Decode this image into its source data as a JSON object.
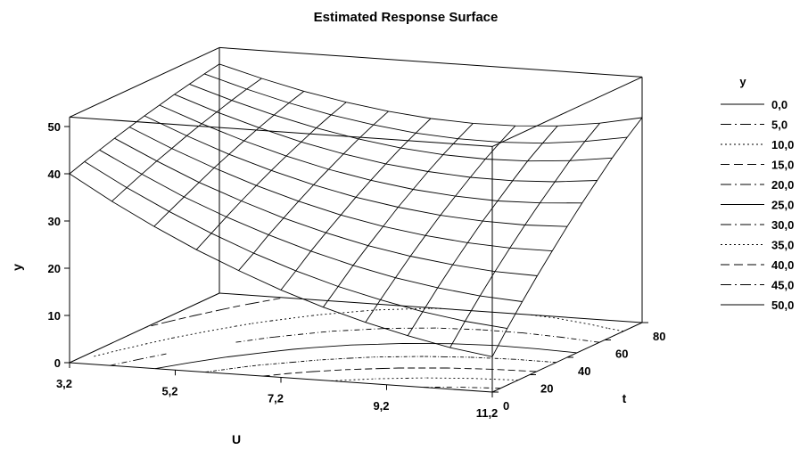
{
  "chart_data": {
    "type": "surface",
    "title": "Estimated Response Surface",
    "xlabel": "U",
    "ylabel": "t",
    "zlabel": "y",
    "x_ticks": [
      "3,2",
      "5,2",
      "7,2",
      "9,2",
      "11,2"
    ],
    "y_ticks": [
      "0",
      "20",
      "40",
      "60",
      "80"
    ],
    "z_ticks": [
      "0",
      "10",
      "20",
      "30",
      "40",
      "50"
    ],
    "xlim": [
      3.2,
      11.2
    ],
    "ylim": [
      0,
      80
    ],
    "zlim": [
      0,
      50
    ],
    "surface_grid": {
      "x": [
        3.2,
        4.0,
        4.8,
        5.6,
        6.4,
        7.2,
        8.0,
        8.8,
        9.6,
        10.4,
        11.2
      ],
      "y": [
        0,
        8,
        16,
        24,
        32,
        40,
        48,
        56,
        64,
        72,
        80
      ],
      "z_rows": [
        [
          40.0,
          34.8,
          30.1,
          25.8,
          22.0,
          18.5,
          15.5,
          12.9,
          10.7,
          8.8,
          7.5
        ],
        [
          41.1,
          36.2,
          31.8,
          27.8,
          24.2,
          21.1,
          18.4,
          16.2,
          14.3,
          12.9,
          12.0
        ],
        [
          42.1,
          37.6,
          33.4,
          29.8,
          26.6,
          23.8,
          21.4,
          19.4,
          17.9,
          16.8,
          16.2
        ],
        [
          43.1,
          38.9,
          35.0,
          31.7,
          28.7,
          26.2,
          24.1,
          22.5,
          21.3,
          20.5,
          20.2
        ],
        [
          44.0,
          40.1,
          36.6,
          33.5,
          30.8,
          28.5,
          26.7,
          25.4,
          24.5,
          24.0,
          24.0
        ],
        [
          44.9,
          41.3,
          38.0,
          35.2,
          32.8,
          30.8,
          29.3,
          28.2,
          27.6,
          27.4,
          27.7
        ],
        [
          45.7,
          42.4,
          39.4,
          36.8,
          34.6,
          32.9,
          31.6,
          30.8,
          30.4,
          30.6,
          31.2
        ],
        [
          46.5,
          43.4,
          40.7,
          38.3,
          36.4,
          34.9,
          33.9,
          33.3,
          33.2,
          33.6,
          34.5
        ],
        [
          47.2,
          44.4,
          41.9,
          39.8,
          38.1,
          36.8,
          36.0,
          35.7,
          35.9,
          36.6,
          37.8
        ],
        [
          47.9,
          45.3,
          43.0,
          41.1,
          39.6,
          38.5,
          37.9,
          37.8,
          38.2,
          39.2,
          40.7
        ],
        [
          48.5,
          46.1,
          44.0,
          42.3,
          41.0,
          40.1,
          39.7,
          39.8,
          40.4,
          41.6,
          43.4
        ]
      ]
    },
    "legend": {
      "title": "y",
      "placement": "right",
      "entries": [
        {
          "label": "0,0",
          "dash": "solid"
        },
        {
          "label": "5,0",
          "dash": "dash-dot"
        },
        {
          "label": "10,0",
          "dash": "dotted"
        },
        {
          "label": "15,0",
          "dash": "long-dash"
        },
        {
          "label": "20,0",
          "dash": "dash-dot"
        },
        {
          "label": "25,0",
          "dash": "solid"
        },
        {
          "label": "30,0",
          "dash": "dash-dot"
        },
        {
          "label": "35,0",
          "dash": "dotted"
        },
        {
          "label": "40,0",
          "dash": "long-dash"
        },
        {
          "label": "45,0",
          "dash": "dash-dot"
        },
        {
          "label": "50,0",
          "dash": "solid"
        }
      ]
    },
    "contour_levels_on_base": [
      5,
      10,
      15,
      20,
      25,
      30,
      35,
      40,
      45
    ],
    "colors": {
      "line": "#000000",
      "background": "#ffffff"
    }
  }
}
